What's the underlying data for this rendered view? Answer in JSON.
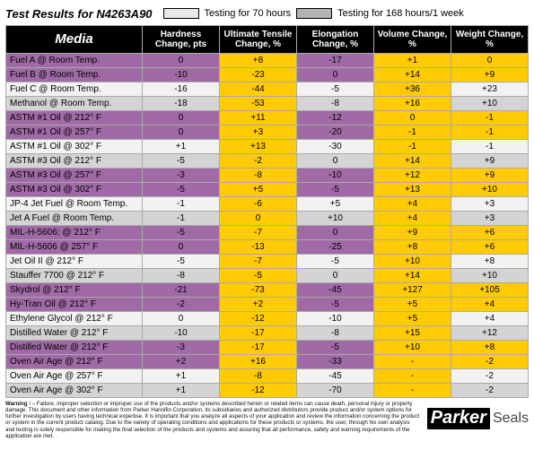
{
  "title": "Test Results for N4263A90",
  "legend": {
    "a_color": "#e8e8e8",
    "a_text": "Testing for  70 hours",
    "b_color": "#b3b3b3",
    "b_text": "Testing for 168 hours/1 week"
  },
  "colors": {
    "header_bg": "#000000",
    "header_media": "Media",
    "purple": "#a06aa6",
    "yellow": "#ffcb05",
    "grey_light": "#f2f2f2",
    "grey_dark": "#d4d4d4"
  },
  "columns": [
    "Media",
    "Hardness Change, pts",
    "Ultimate Tensile Change, %",
    "Elongation Change, %",
    "Volume Change, %",
    "Weight Change, %"
  ],
  "rows": [
    {
      "p": "p",
      "g": 0,
      "c": [
        "Fuel A @ Room Temp.",
        "0",
        "+8",
        "-17",
        "+1",
        "0"
      ]
    },
    {
      "p": "p",
      "g": 1,
      "c": [
        "Fuel B @ Room Temp.",
        "-10",
        "-23",
        "0",
        "+14",
        "+9"
      ]
    },
    {
      "p": "g",
      "g": 0,
      "c": [
        "Fuel C @ Room Temp.",
        "-16",
        "-44",
        "-5",
        "+36",
        "+23"
      ]
    },
    {
      "p": "g",
      "g": 1,
      "c": [
        "Methanol @ Room Temp.",
        "-18",
        "-53",
        "-8",
        "+16",
        "+10"
      ]
    },
    {
      "p": "p",
      "g": 0,
      "c": [
        "ASTM #1 Oil @ 212° F",
        "0",
        "+11",
        "-12",
        "0",
        "-1"
      ]
    },
    {
      "p": "p",
      "g": 1,
      "c": [
        "ASTM #1 Oil @ 257° F",
        "0",
        "+3",
        "-20",
        "-1",
        "-1"
      ]
    },
    {
      "p": "g",
      "g": 0,
      "c": [
        "ASTM #1 Oil @ 302° F",
        "+1",
        "+13",
        "-30",
        "-1",
        "-1"
      ]
    },
    {
      "p": "g",
      "g": 1,
      "c": [
        "ASTM #3 Oil @ 212° F",
        "-5",
        "-2",
        "0",
        "+14",
        "+9"
      ]
    },
    {
      "p": "p",
      "g": 0,
      "c": [
        "ASTM #3 Oil @ 257° F",
        "-3",
        "-8",
        "-10",
        "+12",
        "+9"
      ]
    },
    {
      "p": "p",
      "g": 1,
      "c": [
        "ASTM #3 Oil @ 302° F",
        "-5",
        "+5",
        "-5",
        "+13",
        "+10"
      ]
    },
    {
      "p": "g",
      "g": 0,
      "c": [
        "JP-4 Jet Fuel @ Room Temp.",
        "-1",
        "-6",
        "+5",
        "+4",
        "+3"
      ]
    },
    {
      "p": "g",
      "g": 1,
      "c": [
        "Jet A Fuel @ Room Temp.",
        "-1",
        "0",
        "+10",
        "+4",
        "+3"
      ]
    },
    {
      "p": "p",
      "g": 0,
      "c": [
        "MIL-H-5606; @ 212° F",
        "-5",
        "-7",
        "0",
        "+9",
        "+6"
      ]
    },
    {
      "p": "p",
      "g": 1,
      "c": [
        "MIL-H-5606 @ 257° F",
        "0",
        "-13",
        "-25",
        "+8",
        "+6"
      ]
    },
    {
      "p": "g",
      "g": 0,
      "c": [
        "Jet Oil II @ 212° F",
        "-5",
        "-7",
        "-5",
        "+10",
        "+8"
      ]
    },
    {
      "p": "g",
      "g": 1,
      "c": [
        "Stauffer 7700 @ 212° F",
        "-8",
        "-5",
        "0",
        "+14",
        "+10"
      ]
    },
    {
      "p": "p",
      "g": 0,
      "c": [
        "Skydrol @ 212° F",
        "-21",
        "-73",
        "-45",
        "+127",
        "+105"
      ]
    },
    {
      "p": "p",
      "g": 1,
      "c": [
        "Hy-Tran Oil @ 212° F",
        "-2",
        "+2",
        "-5",
        "+5",
        "+4"
      ]
    },
    {
      "p": "g",
      "g": 0,
      "c": [
        "Ethylene Glycol @ 212° F",
        "0",
        "-12",
        "-10",
        "+5",
        "+4"
      ]
    },
    {
      "p": "g",
      "g": 1,
      "c": [
        "Distilled Water  @ 212° F",
        "-10",
        "-17",
        "-8",
        "+15",
        "+12"
      ]
    },
    {
      "p": "p",
      "g": 0,
      "c": [
        "Distilled Water @ 212° F",
        "-3",
        "-17",
        "-5",
        "+10",
        "+8"
      ]
    },
    {
      "p": "p",
      "g": 1,
      "c": [
        "Oven Air Age @ 212° F",
        "+2",
        "+16",
        "-33",
        "-",
        "-2"
      ]
    },
    {
      "p": "g",
      "g": 0,
      "c": [
        "Oven Air Age @ 257° F",
        "+1",
        "-8",
        "-45",
        "-",
        "-2"
      ]
    },
    {
      "p": "g",
      "g": 1,
      "c": [
        "Oven Air Age @ 302° F",
        "+1",
        "-12",
        "-70",
        "-",
        "-2"
      ]
    }
  ],
  "disclaimer": "Warning ! – Failure, improper selection or improper use of the products and/or systems described herein or related items can cause death, personal injury or property damage. This document and other information from Parker Hannifin Corporation, its subsidiaries and authorized distributors provide product and/or system options for further investigation by users having technical expertise. It is important that you analyze all aspects of your application and review the information concerning the product or system in the current product catalog. Due to the variety of operating conditions and applications for these products or systems, the user, through his own analysis and testing is solely responsible for making the final selection of the products and systems and assuring that all performance, safety and warning requirements of the application are met.",
  "brand": {
    "name": "Parker",
    "sub": "Seals"
  }
}
